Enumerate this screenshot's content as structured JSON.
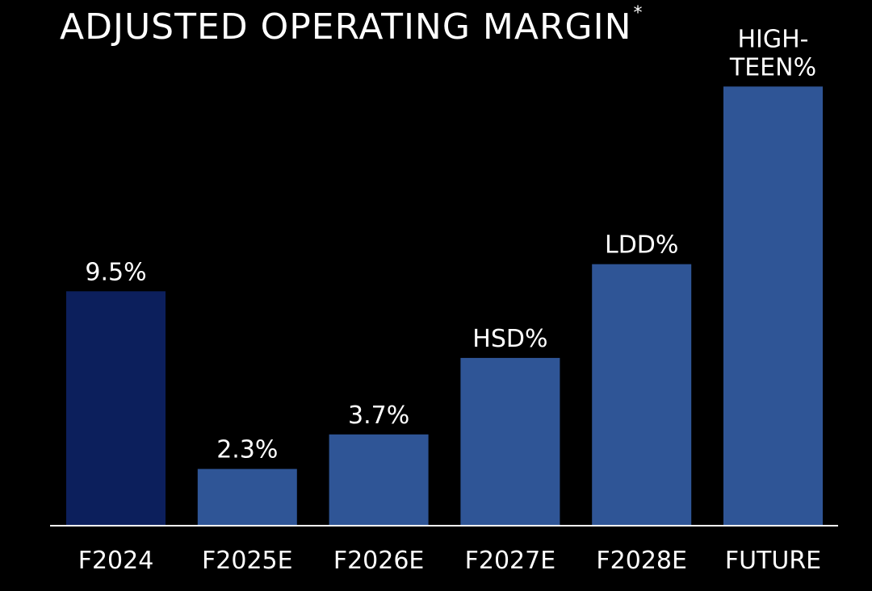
{
  "chart_data": {
    "type": "bar",
    "title": "ADJUSTED OPERATING MARGIN",
    "title_marker": "*",
    "categories": [
      "F2024",
      "F2025E",
      "F2026E",
      "F2027E",
      "F2028E",
      "FUTURE"
    ],
    "values": [
      9.5,
      2.3,
      3.7,
      6.8,
      10.6,
      17.8
    ],
    "value_labels": [
      [
        "9.5%"
      ],
      [
        "2.3%"
      ],
      [
        "3.7%"
      ],
      [
        "HSD%"
      ],
      [
        "LDD%"
      ],
      [
        "HIGH-",
        "TEEN%"
      ]
    ],
    "ylim": [
      0,
      20
    ],
    "grid": false,
    "legend": "none",
    "colors": {
      "background": "#000000",
      "highlight_bar": "#0c1f5c",
      "bar": "#2f5596",
      "text": "#ffffff",
      "baseline": "#ffffff"
    }
  }
}
